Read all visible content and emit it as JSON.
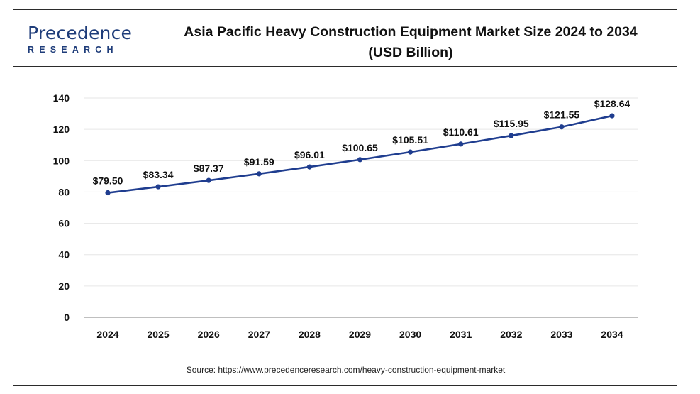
{
  "logo": {
    "word": "Precedence",
    "sub": "RESEARCH"
  },
  "title_line1": "Asia Pacific Heavy Construction Equipment Market Size 2024 to 2034",
  "title_line2": "(USD Billion)",
  "source": "Source: https://www.precedenceresearch.com/heavy-construction-equipment-market",
  "colors": {
    "line": "#1f3d8f",
    "marker": "#1f3d8f",
    "grid": "#e6e6e6",
    "axis": "#999999"
  },
  "chart_data": {
    "type": "line",
    "title": "Asia Pacific Heavy Construction Equipment Market Size 2024 to 2034 (USD Billion)",
    "xlabel": "",
    "ylabel": "",
    "categories": [
      "2024",
      "2025",
      "2026",
      "2027",
      "2028",
      "2029",
      "2030",
      "2031",
      "2032",
      "2033",
      "2034"
    ],
    "values": [
      79.5,
      83.34,
      87.37,
      91.59,
      96.01,
      100.65,
      105.51,
      110.61,
      115.95,
      121.55,
      128.64
    ],
    "data_labels": [
      "$79.50",
      "$83.34",
      "$87.37",
      "$91.59",
      "$96.01",
      "$100.65",
      "$105.51",
      "$110.61",
      "$115.95",
      "$121.55",
      "$128.64"
    ],
    "ylim": [
      0,
      140
    ],
    "yticks": [
      0,
      20,
      40,
      60,
      80,
      100,
      120,
      140
    ],
    "grid": true,
    "legend": "none"
  }
}
